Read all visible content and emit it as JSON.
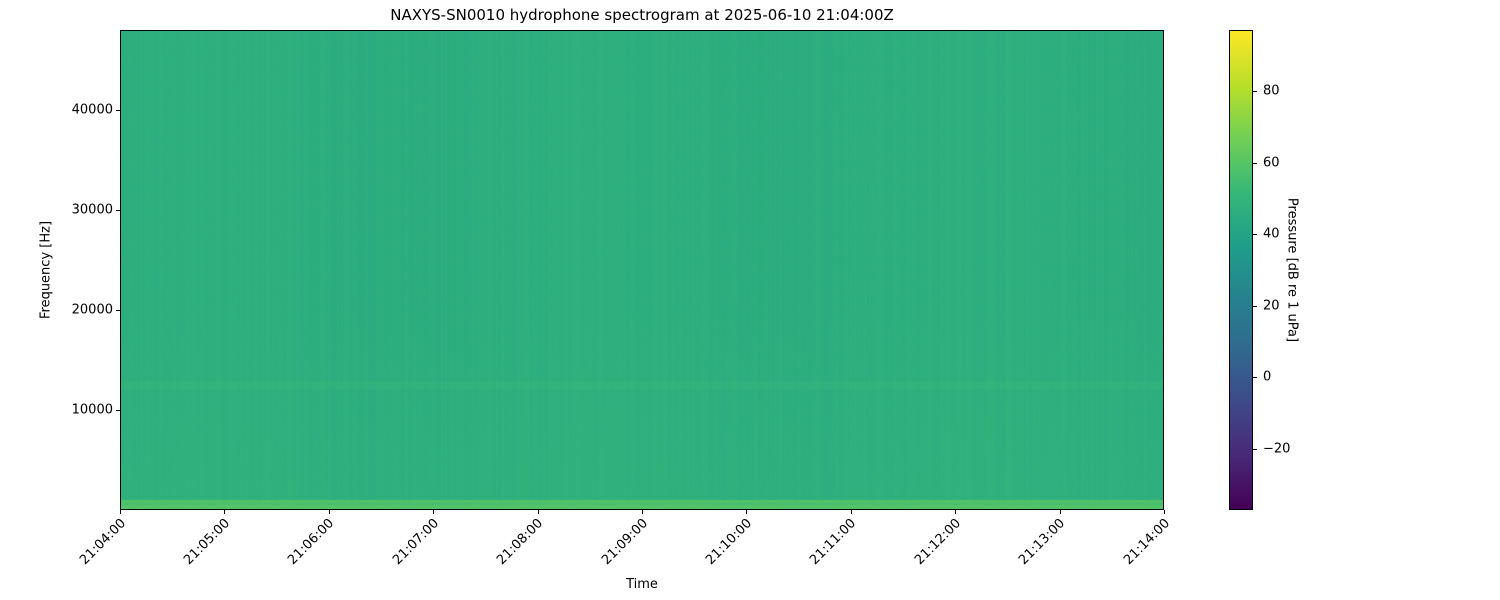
{
  "chart_data": {
    "type": "heatmap",
    "title": "NAXYS-SN0010 hydrophone spectrogram at 2025-06-10 21:04:00Z",
    "xlabel": "Time",
    "ylabel": "Frequency [Hz]",
    "x_ticks": [
      "21:04:00",
      "21:05:00",
      "21:06:00",
      "21:07:00",
      "21:08:00",
      "21:09:00",
      "21:10:00",
      "21:11:00",
      "21:12:00",
      "21:13:00",
      "21:14:00"
    ],
    "xlim": [
      "21:04:00",
      "21:14:00"
    ],
    "y_ticks": [
      10000,
      20000,
      30000,
      40000
    ],
    "ylim": [
      0,
      48000
    ],
    "colormap": "viridis",
    "colorbar": {
      "label": "Pressure [dB re 1 uPa]",
      "ticks": [
        -20,
        0,
        20,
        40,
        60,
        80
      ],
      "range": [
        -37,
        97
      ]
    },
    "levels_db": {
      "background": 47,
      "low_band_0_1000Hz": 60,
      "band_near_12500Hz": 50
    },
    "grid": false
  }
}
